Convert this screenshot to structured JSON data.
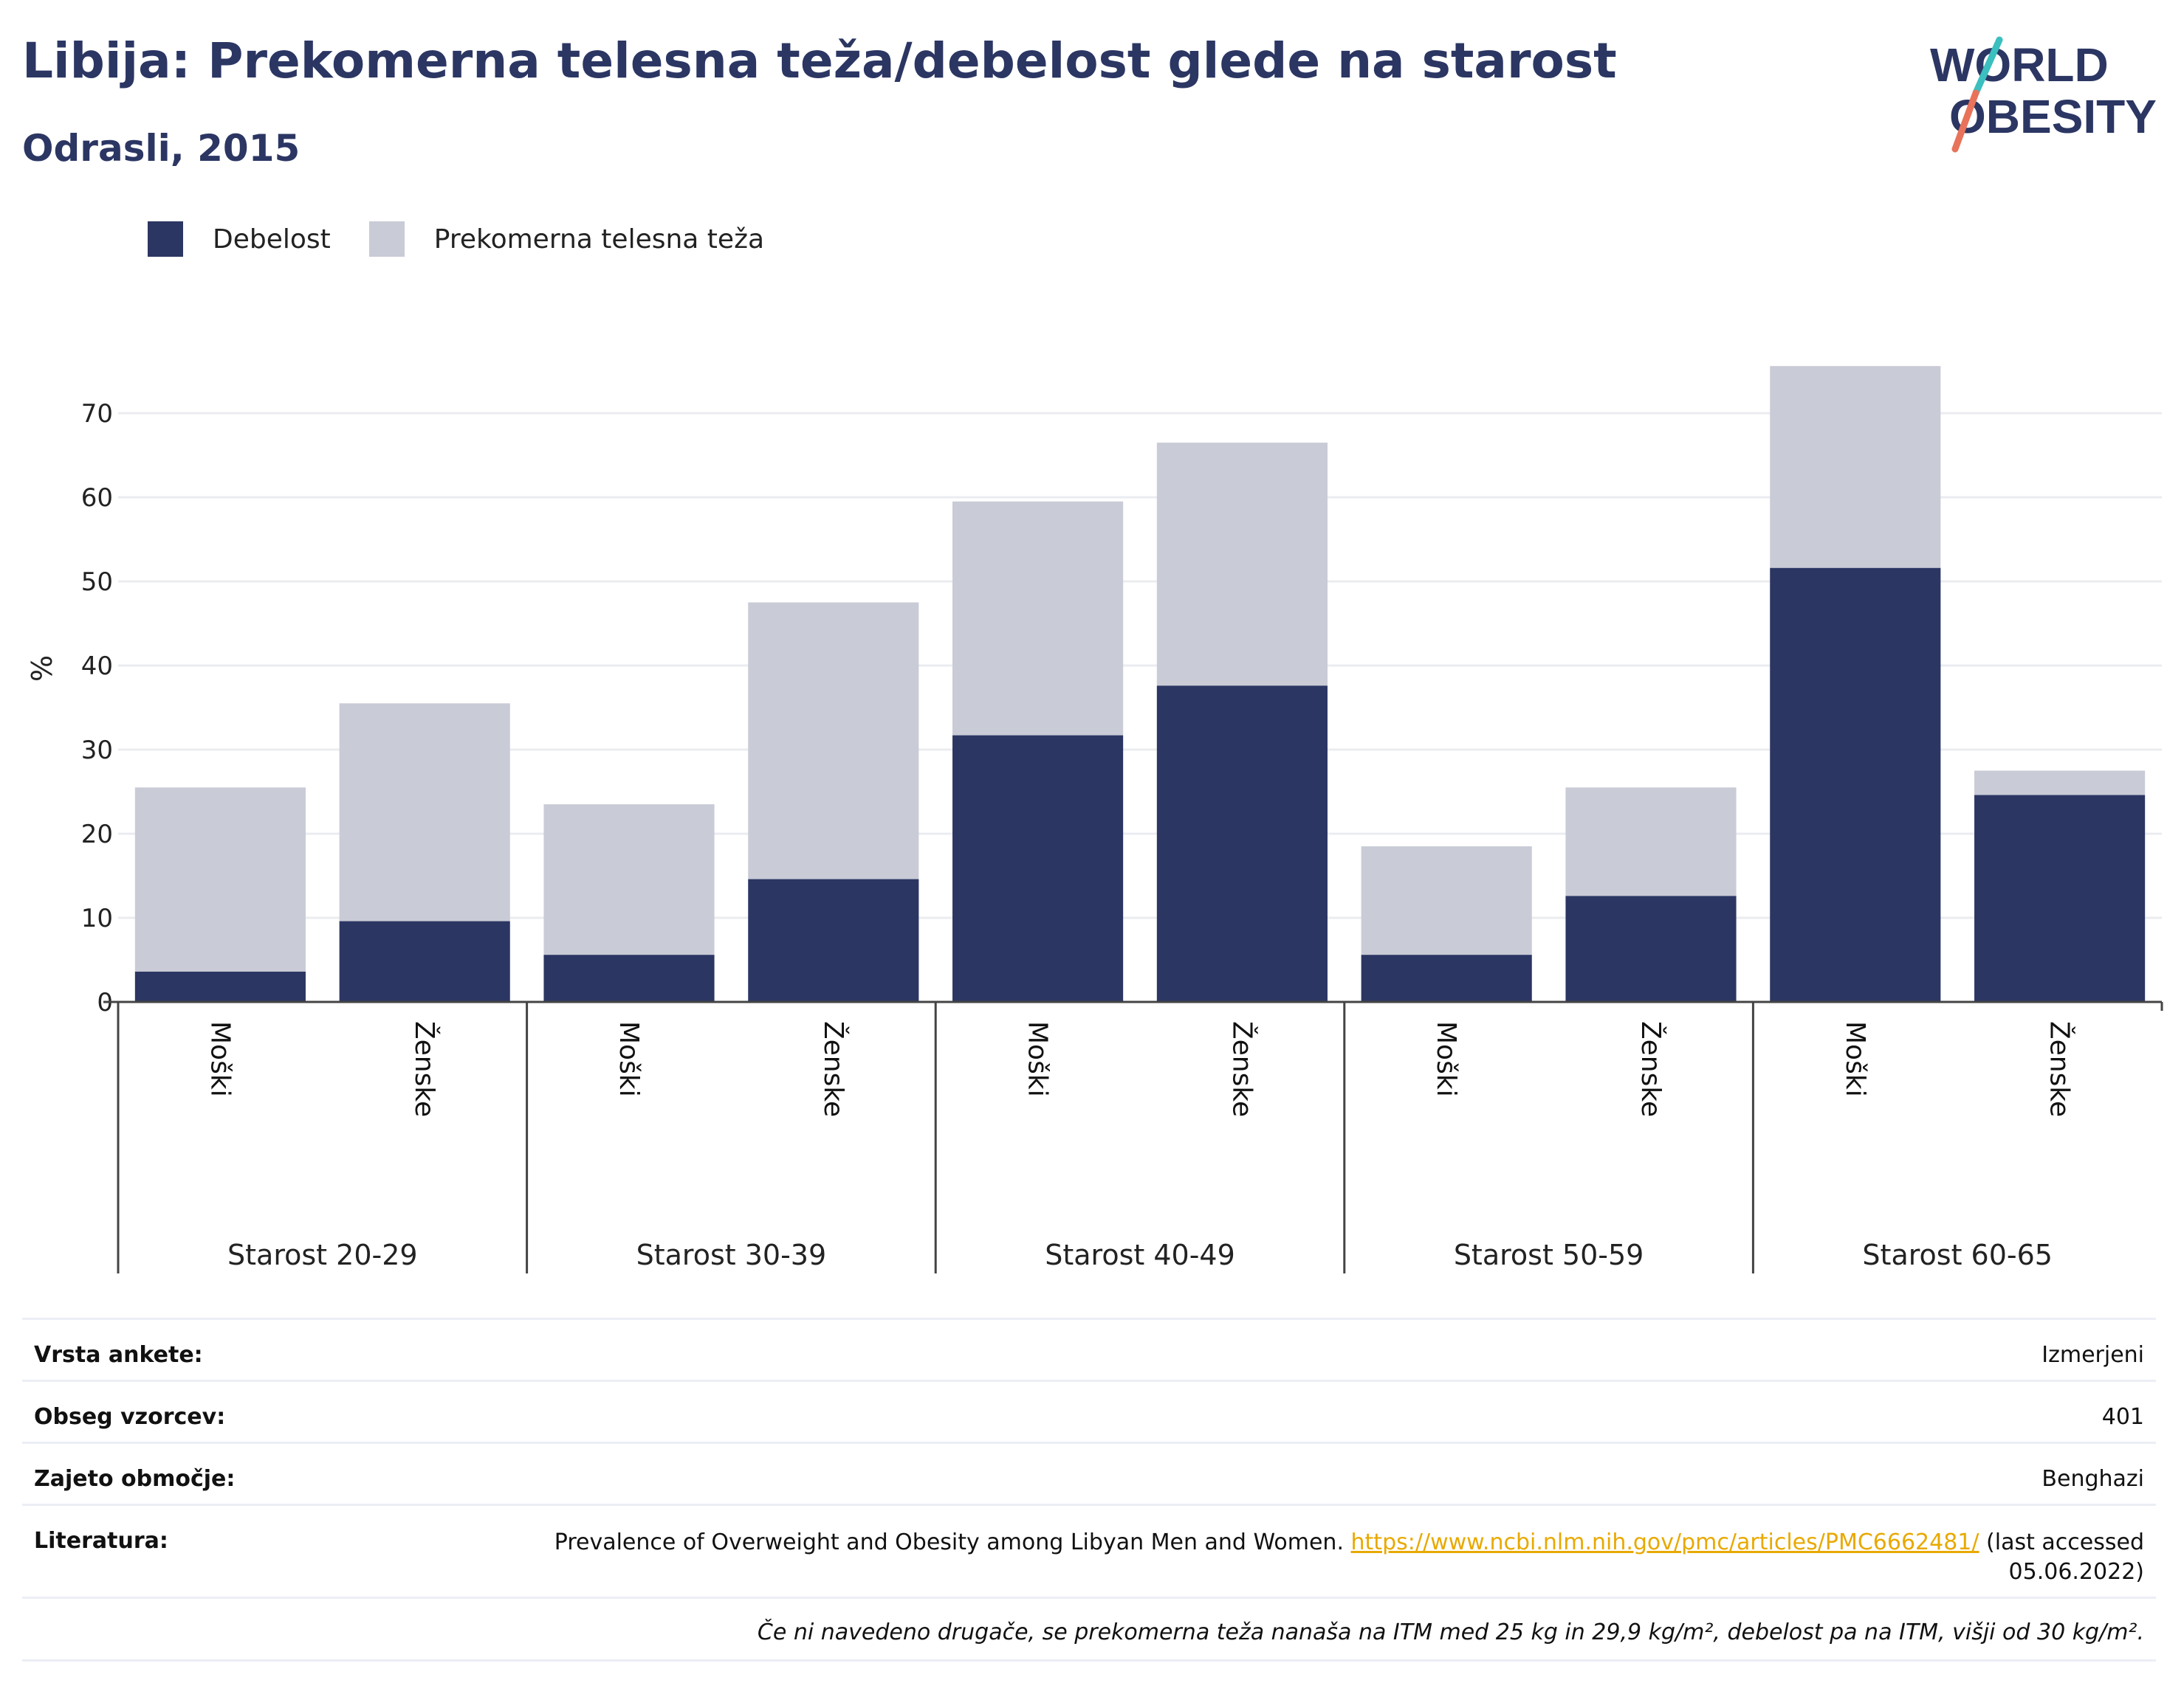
{
  "title": "Libija: Prekomerna telesna teža/debelost glede na starost",
  "subtitle": "Odrasli, 2015",
  "logo": {
    "line1": "WORLD",
    "line2": "OBESITY"
  },
  "colors": {
    "obesity": "#2b3663",
    "overweight": "#c9cbd6",
    "title": "#2b3663",
    "link": "#e8a900",
    "logo_teal": "#3bbfbf",
    "logo_coral": "#e8735a"
  },
  "legend": [
    {
      "label": "Debelost",
      "color": "#2b3663"
    },
    {
      "label": "Prekomerna telesna teža",
      "color": "#c9cbd6"
    }
  ],
  "chart_data": {
    "type": "bar",
    "stacked": true,
    "ylabel": "%",
    "ylim": [
      0,
      80
    ],
    "yticks": [
      0,
      10,
      20,
      30,
      40,
      50,
      60,
      70
    ],
    "grid": true,
    "legend_position": "top-left",
    "groups": [
      "Starost 20-29",
      "Starost 30-39",
      "Starost 40-49",
      "Starost 50-59",
      "Starost 60-65"
    ],
    "subcategories": [
      "Moški",
      "Ženske"
    ],
    "series": [
      {
        "name": "Debelost",
        "values": [
          3.6,
          9.6,
          5.6,
          14.6,
          31.7,
          37.6,
          5.6,
          12.6,
          51.6,
          24.6
        ]
      },
      {
        "name": "Prekomerna telesna teža",
        "values": [
          21.9,
          25.9,
          17.9,
          32.9,
          27.8,
          28.9,
          12.9,
          12.9,
          24.0,
          2.9
        ]
      }
    ]
  },
  "info": {
    "survey_type": {
      "label": "Vrsta ankete:",
      "value": "Izmerjeni"
    },
    "sample_size": {
      "label": "Obseg vzorcev:",
      "value": "401"
    },
    "coverage": {
      "label": "Zajeto območje:",
      "value": "Benghazi"
    },
    "reference": {
      "label": "Literatura:",
      "text": "Prevalence of Overweight and Obesity among Libyan Men and Women.",
      "url": "https://www.ncbi.nlm.nih.gov/pmc/articles/PMC6662481/",
      "suffix": "(last accessed 05.06.2022)"
    },
    "note": "Če ni navedeno drugače, se prekomerna teža nanaša na ITM med 25 kg in 29,9 kg/m², debelost pa na ITM, višji od 30 kg/m²."
  }
}
